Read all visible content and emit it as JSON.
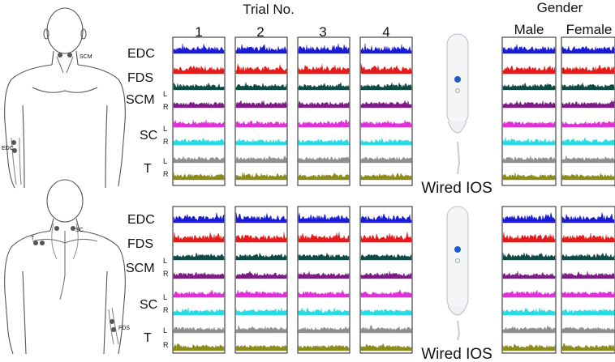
{
  "header": {
    "trial_title": "Trial No.",
    "trial_numbers": [
      "1",
      "2",
      "3",
      "4"
    ],
    "gender_title": "Gender",
    "gender_labels": [
      "Male",
      "Female"
    ]
  },
  "panels": [
    {
      "device_caption": "Wired IOS",
      "body_view": "front",
      "figure_labels": [
        "SCM",
        "EDC"
      ]
    },
    {
      "device_caption": "Wired IOS",
      "body_view": "back",
      "figure_labels": [
        "T",
        "SC",
        "FDS"
      ]
    }
  ],
  "muscles": [
    {
      "label": "EDC",
      "sides": [
        ""
      ],
      "colors": [
        "#1b1bd6"
      ]
    },
    {
      "label": "FDS",
      "sides": [
        ""
      ],
      "colors": [
        "#e41b1b"
      ]
    },
    {
      "label": "SCM",
      "sides": [
        "L",
        "R"
      ],
      "colors": [
        "#0d4a43",
        "#7d1a86"
      ]
    },
    {
      "label": "SC",
      "sides": [
        "L",
        "R"
      ],
      "colors": [
        "#e030d8",
        "#26dbe3"
      ]
    },
    {
      "label": "T",
      "sides": [
        "L",
        "R"
      ],
      "colors": [
        "#8e8e8e",
        "#8b8b1b"
      ]
    }
  ],
  "icons": {
    "body_front": "human-body-front-icon",
    "body_back": "human-body-back-icon",
    "device": "intraoral-scanner-icon"
  }
}
